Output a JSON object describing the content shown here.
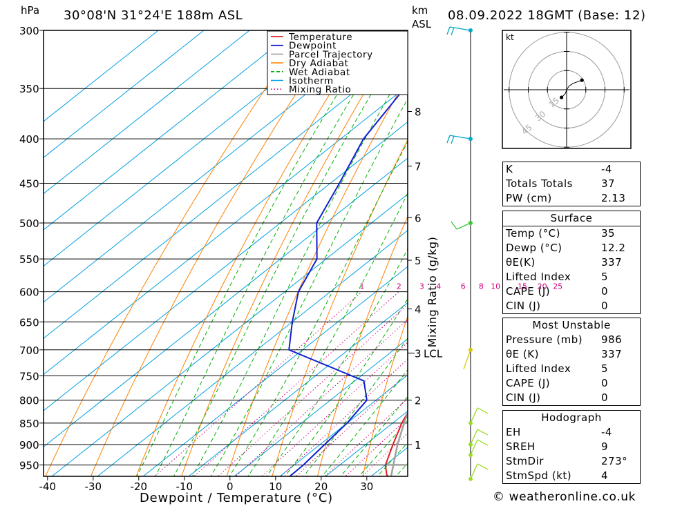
{
  "header": {
    "pressure_unit": "hPa",
    "location": "30°08'N 31°24'E 188m ASL",
    "km_unit": "km",
    "asl": "ASL",
    "datetime": "08.09.2022 18GMT (Base: 12)"
  },
  "chart_data": {
    "type": "skew-t log-p",
    "xlabel": "Dewpoint / Temperature (°C)",
    "mixing_ratio_axis_label": "Mixing Ratio (g/kg)",
    "x_ticks": [
      -40,
      -30,
      -20,
      -10,
      0,
      10,
      20,
      30
    ],
    "pressure_levels": [
      300,
      350,
      400,
      450,
      500,
      550,
      600,
      650,
      700,
      750,
      800,
      850,
      900,
      950
    ],
    "km_ticks": [
      {
        "label": "1",
        "p": 900
      },
      {
        "label": "2",
        "p": 800
      },
      {
        "label": "3",
        "p": 706
      },
      {
        "label": "4",
        "p": 628
      },
      {
        "label": "5",
        "p": 552
      },
      {
        "label": "6",
        "p": 493
      },
      {
        "label": "7",
        "p": 430
      },
      {
        "label": "8",
        "p": 372
      }
    ],
    "lcl_label": "LCL",
    "lcl_p": 706,
    "mixing_ratio_labels": [
      "1",
      "2",
      "3",
      "4",
      "6",
      "8",
      "10",
      "15",
      "20",
      "25"
    ],
    "mixing_ratio_values": [
      1,
      2,
      3,
      4,
      6,
      8,
      10,
      15,
      20,
      25
    ],
    "legend": [
      {
        "name": "Temperature",
        "color": "#e00000"
      },
      {
        "name": "Dewpoint",
        "color": "#0000cc"
      },
      {
        "name": "Parcel Trajectory",
        "color": "#a0a0a0"
      },
      {
        "name": "Dry Adiabat",
        "color": "#ff8000"
      },
      {
        "name": "Wet Adiabat",
        "color": "#00b000"
      },
      {
        "name": "Isotherm",
        "color": "#00a0e0"
      },
      {
        "name": "Mixing Ratio",
        "color": "#d00080"
      }
    ],
    "series": [
      {
        "name": "Temperature",
        "points": [
          {
            "p": 986,
            "t": 35
          },
          {
            "p": 975,
            "t": 33
          },
          {
            "p": 950,
            "t": 30
          },
          {
            "p": 900,
            "t": 26
          },
          {
            "p": 850,
            "t": 22
          },
          {
            "p": 800,
            "t": 18.5
          },
          {
            "p": 760,
            "t": 17
          },
          {
            "p": 750,
            "t": 17.5
          },
          {
            "p": 700,
            "t": 15
          },
          {
            "p": 650,
            "t": 9.5
          },
          {
            "p": 600,
            "t": 4
          },
          {
            "p": 550,
            "t": -2
          },
          {
            "p": 500,
            "t": -7.5
          },
          {
            "p": 450,
            "t": -14.5
          },
          {
            "p": 400,
            "t": -22
          },
          {
            "p": 365,
            "t": -28
          }
        ]
      },
      {
        "name": "Dewpoint",
        "points": [
          {
            "p": 986,
            "t": 12.2
          },
          {
            "p": 950,
            "t": 12
          },
          {
            "p": 900,
            "t": 11
          },
          {
            "p": 850,
            "t": 10
          },
          {
            "p": 800,
            "t": 8
          },
          {
            "p": 760,
            "t": 2
          },
          {
            "p": 700,
            "t": -23
          },
          {
            "p": 650,
            "t": -30
          },
          {
            "p": 600,
            "t": -37
          },
          {
            "p": 550,
            "t": -42
          },
          {
            "p": 500,
            "t": -52
          },
          {
            "p": 450,
            "t": -58
          },
          {
            "p": 400,
            "t": -65
          },
          {
            "p": 350,
            "t": -70
          },
          {
            "p": 300,
            "t": -78
          }
        ]
      },
      {
        "name": "Parcel Trajectory",
        "points": [
          {
            "p": 986,
            "t": 35
          },
          {
            "p": 900,
            "t": 27
          },
          {
            "p": 850,
            "t": 22.5
          },
          {
            "p": 800,
            "t": 18
          },
          {
            "p": 750,
            "t": 13.5
          },
          {
            "p": 706,
            "t": 9.5
          },
          {
            "p": 650,
            "t": 5.5
          },
          {
            "p": 600,
            "t": 1.5
          },
          {
            "p": 550,
            "t": -3
          },
          {
            "p": 500,
            "t": -9
          },
          {
            "p": 450,
            "t": -15
          },
          {
            "p": 400,
            "t": -22.5
          },
          {
            "p": 350,
            "t": -31
          },
          {
            "p": 300,
            "t": -41
          }
        ]
      }
    ],
    "wind_barbs": [
      {
        "p": 300,
        "color": "#00aacc"
      },
      {
        "p": 400,
        "color": "#00aacc"
      },
      {
        "p": 500,
        "color": "#33cc33"
      },
      {
        "p": 700,
        "color": "#d8c800"
      },
      {
        "p": 850,
        "color": "#99dd22"
      },
      {
        "p": 900,
        "color": "#99dd22"
      },
      {
        "p": 925,
        "color": "#99dd22"
      },
      {
        "p": 986,
        "color": "#99dd22"
      }
    ],
    "hodograph": {
      "unit": "kt",
      "ring_labels": [
        "15",
        "30",
        "45"
      ],
      "ring_speeds": [
        15,
        30,
        45
      ],
      "path": [
        {
          "u": -4,
          "v": -6
        },
        {
          "u": -1,
          "v": -3
        },
        {
          "u": 0,
          "v": 0
        },
        {
          "u": 2,
          "v": 3
        },
        {
          "u": 5,
          "v": 5
        },
        {
          "u": 12,
          "v": 7.5
        }
      ]
    }
  },
  "indices": {
    "rows": [
      {
        "label": "K",
        "value": "-4"
      },
      {
        "label": "Totals Totals",
        "value": "37"
      },
      {
        "label": "PW (cm)",
        "value": "2.13"
      }
    ]
  },
  "surface": {
    "title": "Surface",
    "rows": [
      {
        "label": "Temp (°C)",
        "value": "35"
      },
      {
        "label": "Dewp (°C)",
        "value": "12.2"
      },
      {
        "label": "θE(K)",
        "value": "337"
      },
      {
        "label": "Lifted Index",
        "value": "5"
      },
      {
        "label": "CAPE (J)",
        "value": "0"
      },
      {
        "label": "CIN (J)",
        "value": "0"
      }
    ]
  },
  "most_unstable": {
    "title": "Most Unstable",
    "rows": [
      {
        "label": "Pressure (mb)",
        "value": "986"
      },
      {
        "label": "θE (K)",
        "value": "337"
      },
      {
        "label": "Lifted Index",
        "value": "5"
      },
      {
        "label": "CAPE (J)",
        "value": "0"
      },
      {
        "label": "CIN (J)",
        "value": "0"
      }
    ]
  },
  "hodograph_table": {
    "title": "Hodograph",
    "rows": [
      {
        "label": "EH",
        "value": "-4"
      },
      {
        "label": "SREH",
        "value": "9"
      },
      {
        "label": "StmDir",
        "value": "273°"
      },
      {
        "label": "StmSpd (kt)",
        "value": "4"
      }
    ]
  },
  "footer": {
    "copyright": "© weatheronline.co.uk"
  }
}
